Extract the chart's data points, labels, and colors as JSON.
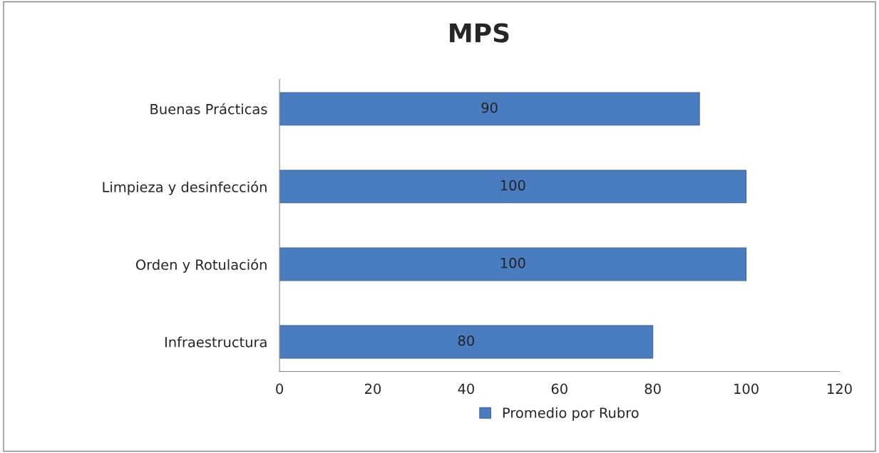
{
  "chart_data": {
    "type": "bar",
    "orientation": "horizontal",
    "title": "MPS",
    "categories": [
      "Buenas Prácticas",
      "Limpieza y desinfección",
      "Orden y Rotulación",
      "Infraestructura"
    ],
    "series": [
      {
        "name": "Promedio por Rubro",
        "color": "#4a7cc0",
        "values": [
          90,
          100,
          100,
          80
        ]
      }
    ],
    "xlim": [
      0,
      120
    ],
    "xticks": [
      0,
      20,
      40,
      60,
      80,
      100,
      120
    ],
    "data_labels": true,
    "grid": false,
    "legend": "bottom"
  }
}
